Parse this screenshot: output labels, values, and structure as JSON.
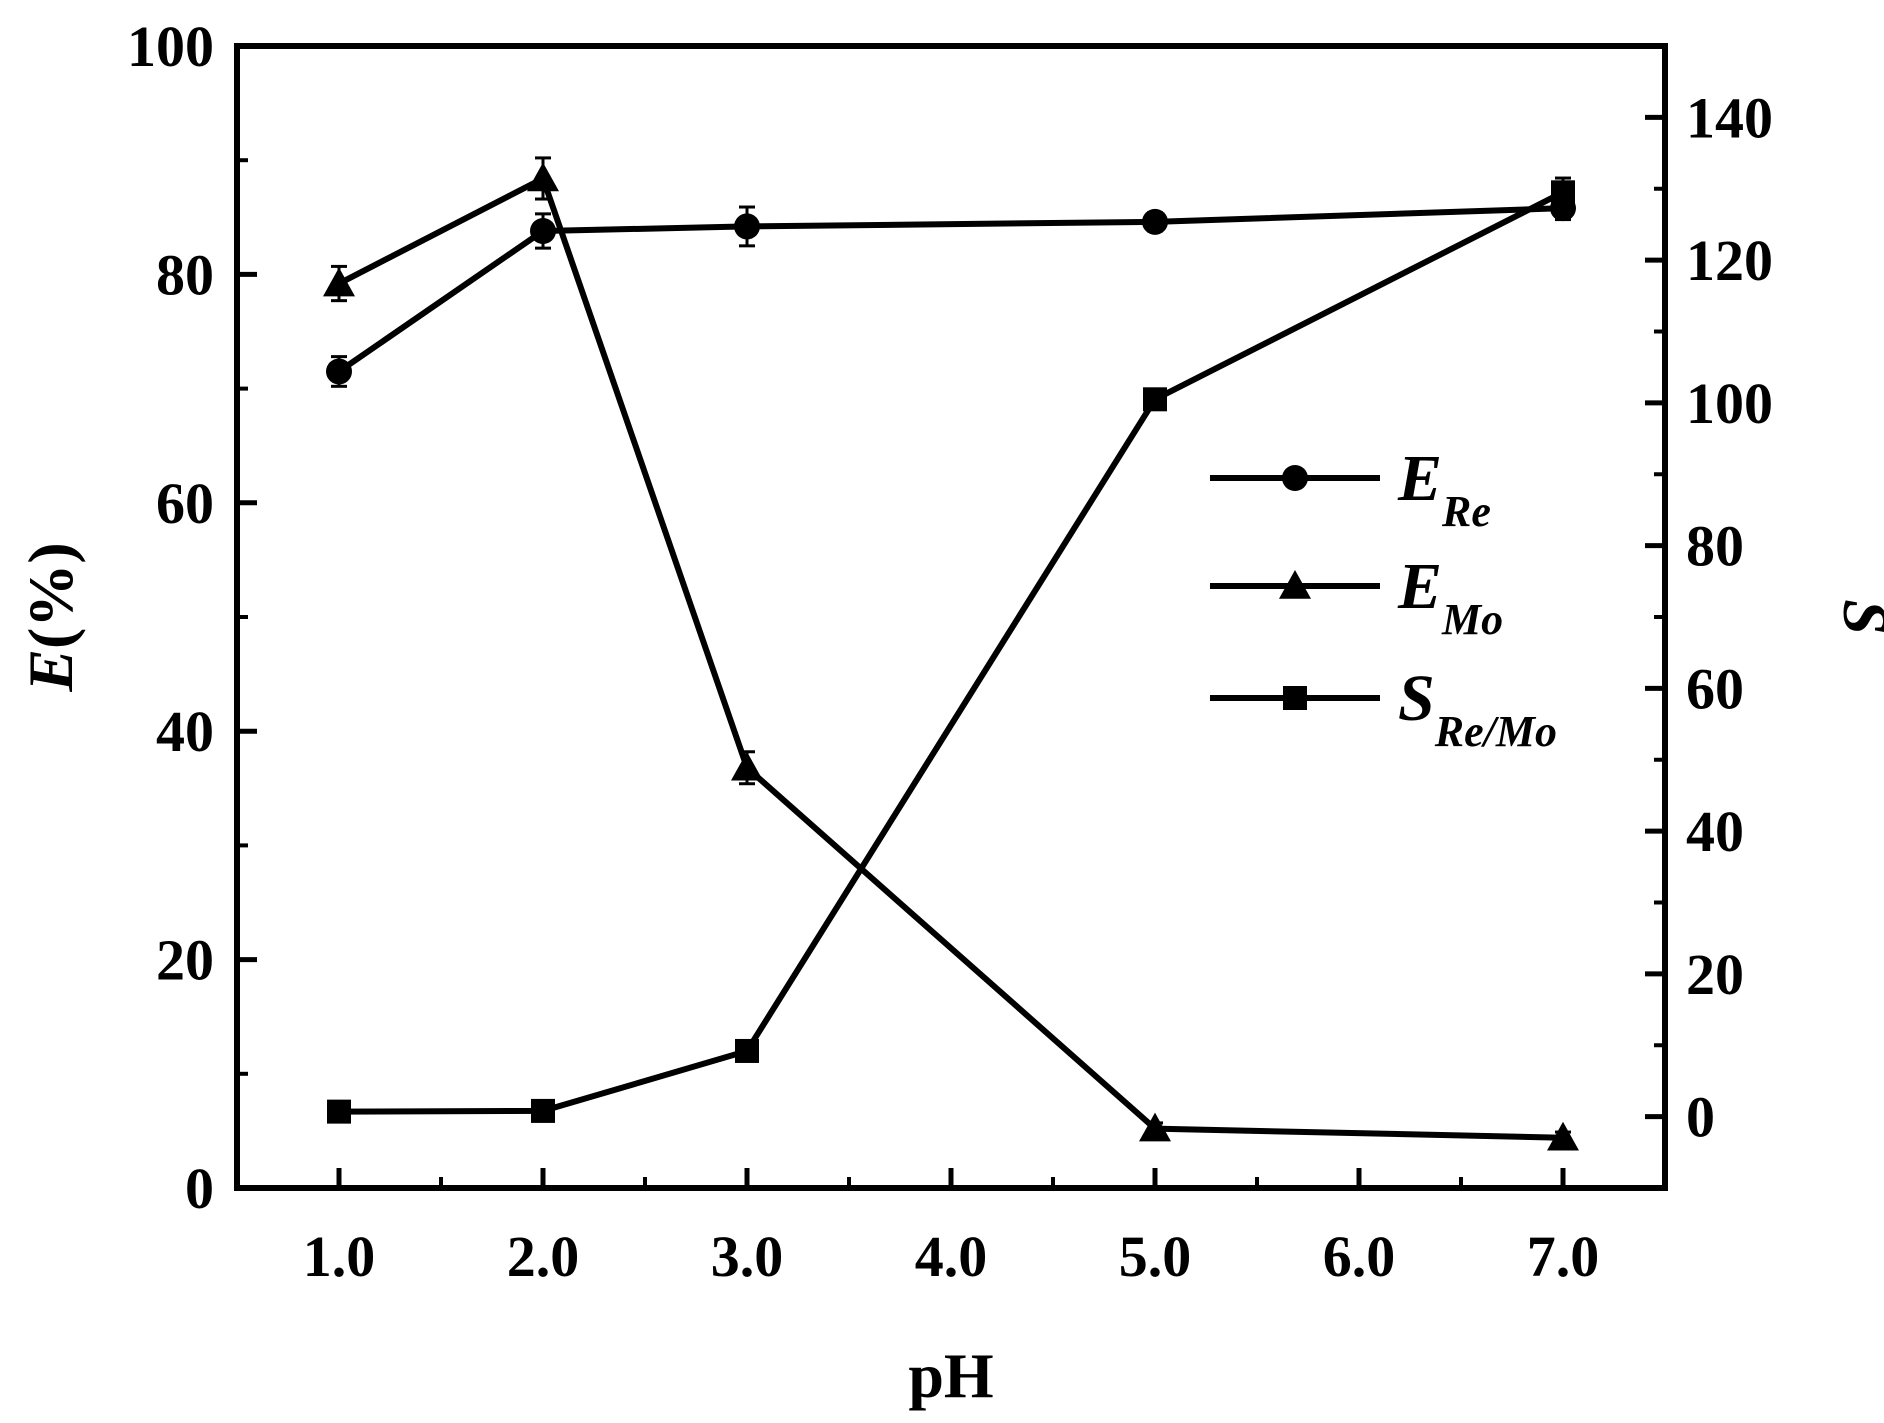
{
  "chart_data": {
    "type": "line",
    "x_ticks": [
      "1.0",
      "2.0",
      "3.0",
      "4.0",
      "5.0",
      "6.0",
      "7.0"
    ],
    "x_values": [
      1,
      2,
      3,
      5,
      7
    ],
    "xlim": [
      0.5,
      7.5
    ],
    "xlabel": "pH",
    "ylabel_left": {
      "main": "E",
      "rest": "(%)"
    },
    "ylim_left": [
      0,
      100
    ],
    "yticks_left": [
      "0",
      "20",
      "40",
      "60",
      "80",
      "100"
    ],
    "ylabel_right": "S",
    "ylim_right": [
      -10,
      150
    ],
    "yticks_right": [
      "0",
      "20",
      "40",
      "60",
      "80",
      "100",
      "120",
      "140"
    ],
    "grid": false,
    "legend_position": "center-right",
    "series": [
      {
        "name": "E",
        "sub": "Re",
        "marker": "circle",
        "axis": "left",
        "values": [
          71.5,
          83.8,
          84.2,
          84.6,
          85.8
        ],
        "errors": [
          1.3,
          1.5,
          1.7,
          0.8,
          1.0
        ]
      },
      {
        "name": "E",
        "sub": "Mo",
        "marker": "triangle",
        "axis": "left",
        "values": [
          79.2,
          88.4,
          36.8,
          5.2,
          4.4
        ],
        "errors": [
          1.5,
          1.8,
          1.4,
          0.5,
          0.5
        ]
      },
      {
        "name": "S",
        "sub": "Re/Mo",
        "marker": "square",
        "axis": "right",
        "values": [
          0.7,
          0.8,
          9.2,
          100.5,
          129.5
        ],
        "errors": [
          0.3,
          0.3,
          0.6,
          1.2,
          2.0
        ]
      }
    ],
    "colors": {
      "line": "#000000",
      "background": "#ffffff"
    }
  }
}
